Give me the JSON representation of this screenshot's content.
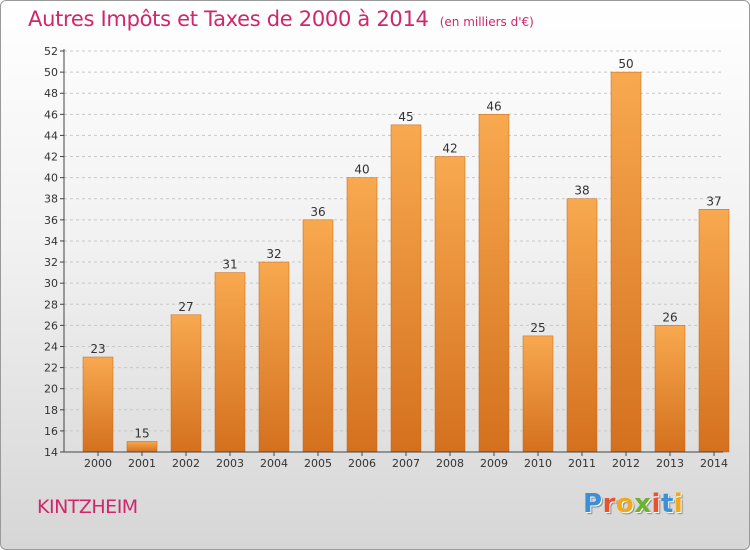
{
  "header": {
    "title": "Autres Impôts et Taxes de 2000 à 2014",
    "subtitle": "(en milliers d'€)"
  },
  "footer": {
    "place": "KINTZHEIM",
    "logo_text": "Proxiti",
    "logo_colors": [
      "#3d8fd6",
      "#e8522f",
      "#f0a81c",
      "#6ab42d",
      "#e8522f",
      "#3d8fd6",
      "#f0a81c"
    ]
  },
  "colors": {
    "bar_top": "#f8a94f",
    "bar_bottom": "#d4701e",
    "bar_edge": "#c26418",
    "axis": "#444444",
    "grid": "#c8c8c8",
    "text": "#333333",
    "accent": "#d0266b"
  },
  "chart_data": {
    "type": "bar",
    "categories": [
      "2000",
      "2001",
      "2002",
      "2003",
      "2004",
      "2005",
      "2006",
      "2007",
      "2008",
      "2009",
      "2010",
      "2011",
      "2012",
      "2013",
      "2014"
    ],
    "values": [
      23,
      15,
      27,
      31,
      32,
      36,
      40,
      45,
      42,
      46,
      25,
      38,
      50,
      26,
      37
    ],
    "title": "Autres Impôts et Taxes de 2000 à 2014",
    "subtitle": "(en milliers d'€)",
    "xlabel": "",
    "ylabel": "",
    "ylim": [
      14,
      52
    ],
    "yticks": [
      14,
      16,
      18,
      20,
      22,
      24,
      26,
      28,
      30,
      32,
      34,
      36,
      38,
      40,
      42,
      44,
      46,
      48,
      50,
      52
    ],
    "data_labels": true,
    "grid": "horizontal dashed"
  }
}
